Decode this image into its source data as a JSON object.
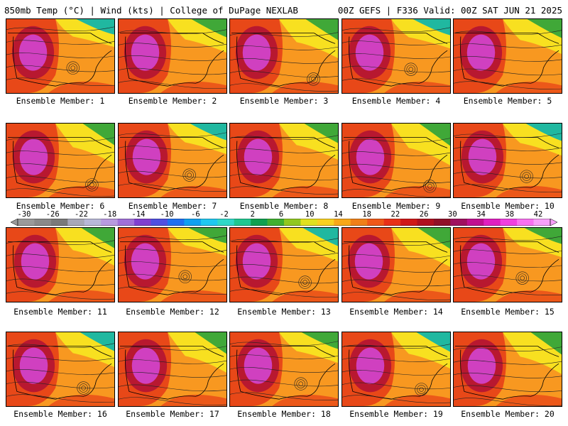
{
  "header": {
    "left": "850mb Temp (°C) | Wind (kts) | College of DuPage NEXLAB",
    "right": "00Z GEFS | F336 Valid: 00Z SAT JUN 21 2025"
  },
  "colorbar": {
    "labels": [
      "-30",
      "-26",
      "-22",
      "-18",
      "-14",
      "-10",
      "-6",
      "-2",
      "2",
      "6",
      "10",
      "14",
      "18",
      "22",
      "26",
      "30",
      "34",
      "38",
      "42"
    ],
    "colors": [
      "#9a9a9a",
      "#8a8a8a",
      "#7a7a7a",
      "#a8a8b8",
      "#b8b8d8",
      "#b89ae0",
      "#a070d8",
      "#8040d0",
      "#5050e0",
      "#2070f0",
      "#10a0f0",
      "#20c8f0",
      "#30d8c8",
      "#20c890",
      "#10a050",
      "#40b030",
      "#90c820",
      "#e0e020",
      "#f8d020",
      "#f8a818",
      "#f08018",
      "#f05818",
      "#e83018",
      "#d01818",
      "#b01020",
      "#901028",
      "#a01060",
      "#c01090",
      "#e020c0",
      "#f040e0",
      "#f870f0",
      "#f8a0f8"
    ]
  },
  "members": [
    {
      "label": "Ensemble Member: 1"
    },
    {
      "label": "Ensemble Member: 2"
    },
    {
      "label": "Ensemble Member: 3"
    },
    {
      "label": "Ensemble Member: 4"
    },
    {
      "label": "Ensemble Member: 5"
    },
    {
      "label": "Ensemble Member: 6"
    },
    {
      "label": "Ensemble Member: 7"
    },
    {
      "label": "Ensemble Member: 8"
    },
    {
      "label": "Ensemble Member: 9"
    },
    {
      "label": "Ensemble Member: 10"
    },
    {
      "label": "Ensemble Member: 11"
    },
    {
      "label": "Ensemble Member: 12"
    },
    {
      "label": "Ensemble Member: 13"
    },
    {
      "label": "Ensemble Member: 14"
    },
    {
      "label": "Ensemble Member: 15"
    },
    {
      "label": "Ensemble Member: 16"
    },
    {
      "label": "Ensemble Member: 17"
    },
    {
      "label": "Ensemble Member: 18"
    },
    {
      "label": "Ensemble Member: 19"
    },
    {
      "label": "Ensemble Member: 20"
    }
  ],
  "field_colors": {
    "hot_core": "#d040c0",
    "core_ring": "#b81830",
    "warm": "#e84818",
    "mild": "#f89820",
    "cool": "#f8e020",
    "cold_green": "#40a838",
    "cold_teal": "#20b8a0"
  }
}
